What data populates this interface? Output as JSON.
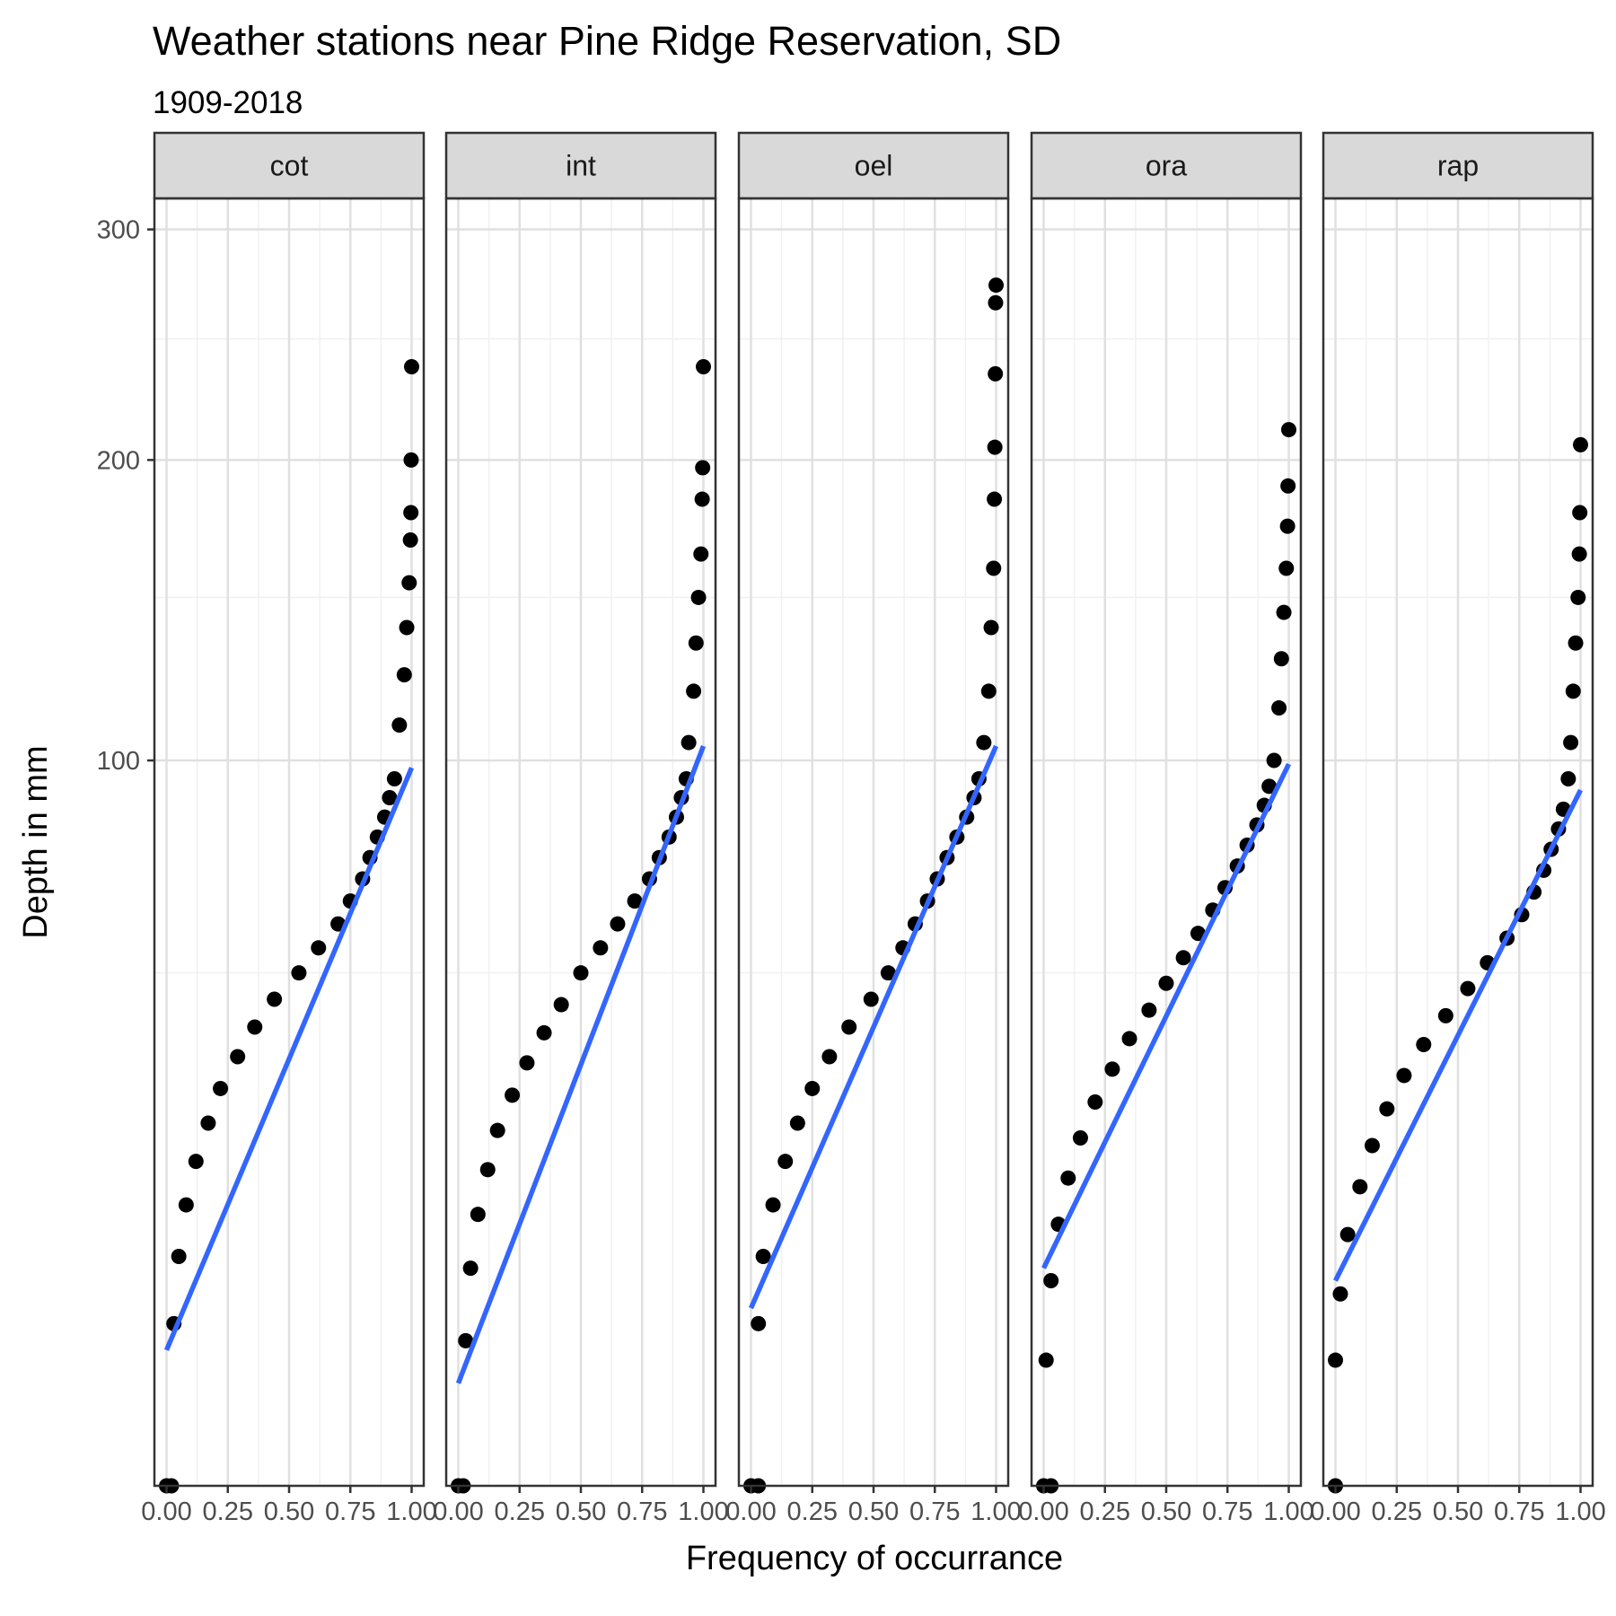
{
  "title": "Weather stations near Pine Ridge Reservation, SD",
  "subtitle": "1909-2018",
  "chart_data": {
    "type": "scatter",
    "title": "Weather stations near Pine Ridge Reservation, SD",
    "subtitle": "1909-2018",
    "xlabel": "Frequency of occurrance",
    "ylabel": "Depth in mm",
    "xlim": [
      0,
      1
    ],
    "ylim": [
      0,
      315
    ],
    "y_scale": "sqrt",
    "x_ticks": [
      "0.00",
      "0.25",
      "0.50",
      "0.75",
      "1.00"
    ],
    "y_ticks": [
      "100",
      "200",
      "300"
    ],
    "y_tick_values": [
      100,
      200,
      300
    ],
    "grid": true,
    "facets": [
      {
        "name": "cot",
        "points": [
          [
            0.0,
            0
          ],
          [
            0.02,
            0
          ],
          [
            0.03,
            5
          ],
          [
            0.05,
            10
          ],
          [
            0.08,
            15
          ],
          [
            0.12,
            20
          ],
          [
            0.17,
            25
          ],
          [
            0.22,
            30
          ],
          [
            0.29,
            35
          ],
          [
            0.36,
            40
          ],
          [
            0.44,
            45
          ],
          [
            0.54,
            50
          ],
          [
            0.62,
            55
          ],
          [
            0.7,
            60
          ],
          [
            0.75,
            65
          ],
          [
            0.8,
            70
          ],
          [
            0.83,
            75
          ],
          [
            0.86,
            80
          ],
          [
            0.89,
            85
          ],
          [
            0.91,
            90
          ],
          [
            0.93,
            95
          ],
          [
            0.95,
            110
          ],
          [
            0.97,
            125
          ],
          [
            0.98,
            140
          ],
          [
            0.99,
            155
          ],
          [
            0.995,
            170
          ],
          [
            0.997,
            180
          ],
          [
            0.998,
            200
          ],
          [
            1.0,
            238
          ]
        ],
        "fit": [
          [
            0.0,
            3.5
          ],
          [
            1.0,
            98
          ]
        ]
      },
      {
        "name": "int",
        "points": [
          [
            0.0,
            0
          ],
          [
            0.02,
            0
          ],
          [
            0.03,
            4
          ],
          [
            0.05,
            9
          ],
          [
            0.08,
            14
          ],
          [
            0.12,
            19
          ],
          [
            0.16,
            24
          ],
          [
            0.22,
            29
          ],
          [
            0.28,
            34
          ],
          [
            0.35,
            39
          ],
          [
            0.42,
            44
          ],
          [
            0.5,
            50
          ],
          [
            0.58,
            55
          ],
          [
            0.65,
            60
          ],
          [
            0.72,
            65
          ],
          [
            0.78,
            70
          ],
          [
            0.82,
            75
          ],
          [
            0.86,
            80
          ],
          [
            0.89,
            85
          ],
          [
            0.91,
            90
          ],
          [
            0.93,
            95
          ],
          [
            0.94,
            105
          ],
          [
            0.96,
            120
          ],
          [
            0.97,
            135
          ],
          [
            0.98,
            150
          ],
          [
            0.99,
            165
          ],
          [
            0.995,
            185
          ],
          [
            0.997,
            197
          ],
          [
            1.0,
            238
          ]
        ],
        "fit": [
          [
            0.0,
            2
          ],
          [
            1.0,
            104
          ]
        ]
      },
      {
        "name": "oel",
        "points": [
          [
            0.0,
            0
          ],
          [
            0.03,
            0
          ],
          [
            0.03,
            5
          ],
          [
            0.05,
            10
          ],
          [
            0.09,
            15
          ],
          [
            0.14,
            20
          ],
          [
            0.19,
            25
          ],
          [
            0.25,
            30
          ],
          [
            0.32,
            35
          ],
          [
            0.4,
            40
          ],
          [
            0.49,
            45
          ],
          [
            0.56,
            50
          ],
          [
            0.62,
            55
          ],
          [
            0.67,
            60
          ],
          [
            0.72,
            65
          ],
          [
            0.76,
            70
          ],
          [
            0.8,
            75
          ],
          [
            0.84,
            80
          ],
          [
            0.88,
            85
          ],
          [
            0.91,
            90
          ],
          [
            0.93,
            95
          ],
          [
            0.95,
            105
          ],
          [
            0.97,
            120
          ],
          [
            0.98,
            140
          ],
          [
            0.99,
            160
          ],
          [
            0.993,
            185
          ],
          [
            0.995,
            205
          ],
          [
            0.997,
            235
          ],
          [
            0.998,
            266
          ],
          [
            1.0,
            274
          ]
        ],
        "fit": [
          [
            0.0,
            6
          ],
          [
            1.0,
            104
          ]
        ]
      },
      {
        "name": "ora",
        "points": [
          [
            0.0,
            0
          ],
          [
            0.03,
            0
          ],
          [
            0.01,
            3
          ],
          [
            0.03,
            8
          ],
          [
            0.06,
            13
          ],
          [
            0.1,
            18
          ],
          [
            0.15,
            23
          ],
          [
            0.21,
            28
          ],
          [
            0.28,
            33
          ],
          [
            0.35,
            38
          ],
          [
            0.43,
            43
          ],
          [
            0.5,
            48
          ],
          [
            0.57,
            53
          ],
          [
            0.63,
            58
          ],
          [
            0.69,
            63
          ],
          [
            0.74,
            68
          ],
          [
            0.79,
            73
          ],
          [
            0.83,
            78
          ],
          [
            0.87,
            83
          ],
          [
            0.9,
            88
          ],
          [
            0.92,
            93
          ],
          [
            0.94,
            100
          ],
          [
            0.96,
            115
          ],
          [
            0.97,
            130
          ],
          [
            0.98,
            145
          ],
          [
            0.99,
            160
          ],
          [
            0.995,
            175
          ],
          [
            0.997,
            190
          ],
          [
            1.0,
            212
          ]
        ],
        "fit": [
          [
            0.0,
            9
          ],
          [
            1.0,
            99
          ]
        ]
      },
      {
        "name": "rap",
        "points": [
          [
            0.0,
            0
          ],
          [
            0.0,
            3
          ],
          [
            0.02,
            7
          ],
          [
            0.05,
            12
          ],
          [
            0.1,
            17
          ],
          [
            0.15,
            22
          ],
          [
            0.21,
            27
          ],
          [
            0.28,
            32
          ],
          [
            0.36,
            37
          ],
          [
            0.45,
            42
          ],
          [
            0.54,
            47
          ],
          [
            0.62,
            52
          ],
          [
            0.7,
            57
          ],
          [
            0.76,
            62
          ],
          [
            0.81,
            67
          ],
          [
            0.85,
            72
          ],
          [
            0.88,
            77
          ],
          [
            0.91,
            82
          ],
          [
            0.93,
            87
          ],
          [
            0.95,
            95
          ],
          [
            0.96,
            105
          ],
          [
            0.97,
            120
          ],
          [
            0.98,
            135
          ],
          [
            0.99,
            150
          ],
          [
            0.995,
            165
          ],
          [
            0.997,
            180
          ],
          [
            1.0,
            206
          ]
        ],
        "fit": [
          [
            0.0,
            8
          ],
          [
            1.0,
            92
          ]
        ]
      }
    ]
  }
}
